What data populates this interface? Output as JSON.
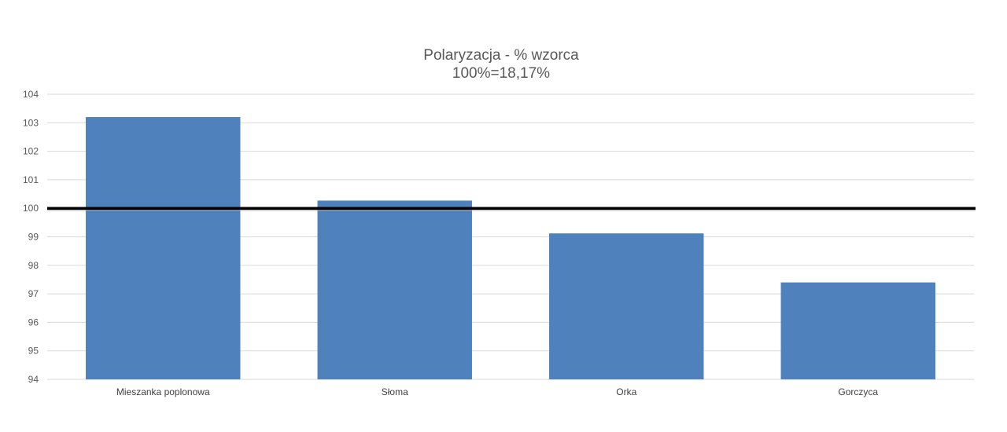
{
  "chart_data": {
    "type": "bar",
    "title": "Polaryzacja - % wzorca",
    "subtitle": "100%=18,17%",
    "categories": [
      "Mieszanka poplonowa",
      "Słoma",
      "Orka",
      "Gorczyca"
    ],
    "series": [
      {
        "values": [
          103.2,
          100.27,
          99.12,
          97.4
        ],
        "color": "#4f81bd"
      }
    ],
    "reference_line": {
      "value": 100,
      "color": "#000000"
    },
    "ylim": [
      94,
      104
    ],
    "y_ticks": [
      94,
      95,
      96,
      97,
      98,
      99,
      100,
      101,
      102,
      103,
      104
    ],
    "grid": true,
    "legend": "none",
    "xlabel": "",
    "ylabel": ""
  }
}
